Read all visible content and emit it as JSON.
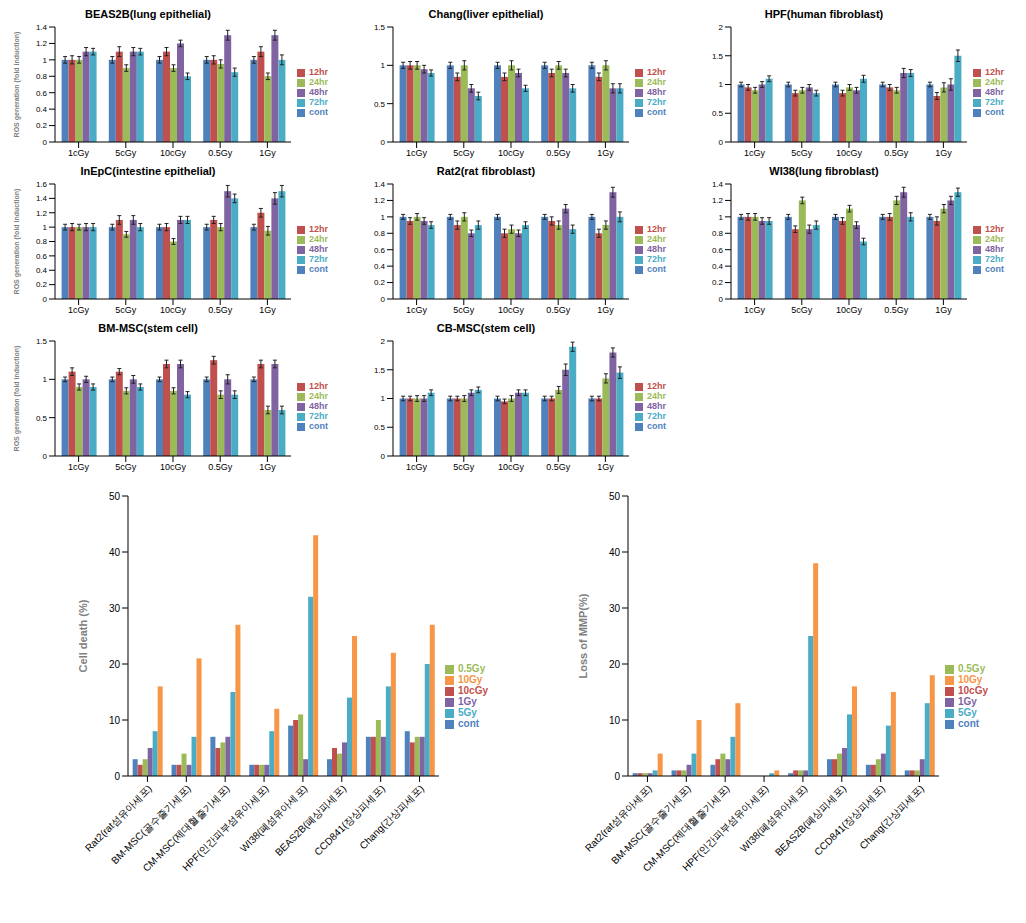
{
  "chart_data": [
    {
      "type": "bar",
      "title": "BEAS2B(lung epithelial)",
      "y_label": "ROS generation (fold induction)",
      "categories": [
        "1cGy",
        "5cGy",
        "10cGy",
        "0.5Gy",
        "1Gy"
      ],
      "ylim": [
        0,
        1.4
      ],
      "yticks": [
        0,
        0.2,
        0.4,
        0.6,
        0.8,
        1,
        1.2,
        1.4
      ],
      "legend": "right",
      "grid": false,
      "series": [
        {
          "name": "cont",
          "color": "#4F81BD",
          "values": [
            1,
            1,
            1,
            1,
            1
          ],
          "errors": [
            0.04,
            0.04,
            0.04,
            0.04,
            0.04
          ]
        },
        {
          "name": "12hr",
          "color": "#C0504D",
          "values": [
            1,
            1.1,
            1.1,
            1.0,
            1.1
          ],
          "errors": [
            0.05,
            0.06,
            0.05,
            0.05,
            0.06
          ]
        },
        {
          "name": "24hr",
          "color": "#9BBB59",
          "values": [
            1,
            0.9,
            0.9,
            0.95,
            0.8
          ],
          "errors": [
            0.04,
            0.04,
            0.04,
            0.05,
            0.04
          ]
        },
        {
          "name": "48hr",
          "color": "#8064A2",
          "values": [
            1.1,
            1.1,
            1.2,
            1.3,
            1.3
          ],
          "errors": [
            0.05,
            0.05,
            0.04,
            0.06,
            0.06
          ]
        },
        {
          "name": "72hr",
          "color": "#4BACC6",
          "values": [
            1.1,
            1.1,
            0.8,
            0.85,
            1.0
          ],
          "errors": [
            0.04,
            0.04,
            0.04,
            0.05,
            0.06
          ]
        }
      ]
    },
    {
      "type": "bar",
      "title": "Chang(liver epithelial)",
      "categories": [
        "1cGy",
        "5cGy",
        "10cGy",
        "0.5Gy",
        "1Gy"
      ],
      "ylim": [
        0,
        1.5
      ],
      "yticks": [
        0,
        0.5,
        1,
        1.5
      ],
      "legend": "right",
      "grid": false,
      "series": [
        {
          "name": "cont",
          "color": "#4F81BD",
          "values": [
            1,
            1,
            1,
            1,
            1
          ],
          "errors": [
            0.04,
            0.04,
            0.04,
            0.04,
            0.04
          ]
        },
        {
          "name": "12hr",
          "color": "#C0504D",
          "values": [
            1,
            0.85,
            0.85,
            0.9,
            0.85
          ],
          "errors": [
            0.05,
            0.05,
            0.05,
            0.05,
            0.05
          ]
        },
        {
          "name": "24hr",
          "color": "#9BBB59",
          "values": [
            1,
            1.0,
            1.0,
            1.0,
            1.0
          ],
          "errors": [
            0.05,
            0.06,
            0.06,
            0.05,
            0.06
          ]
        },
        {
          "name": "48hr",
          "color": "#8064A2",
          "values": [
            0.95,
            0.7,
            0.9,
            0.9,
            0.7
          ],
          "errors": [
            0.05,
            0.05,
            0.05,
            0.05,
            0.06
          ]
        },
        {
          "name": "72hr",
          "color": "#4BACC6",
          "values": [
            0.9,
            0.6,
            0.7,
            0.7,
            0.7
          ],
          "errors": [
            0.04,
            0.05,
            0.04,
            0.05,
            0.06
          ]
        }
      ]
    },
    {
      "type": "bar",
      "title": "HPF(human fibroblast)",
      "categories": [
        "1cGy",
        "5cGy",
        "10cGy",
        "0.5Gy",
        "1Gy"
      ],
      "ylim": [
        0,
        2
      ],
      "yticks": [
        0,
        0.5,
        1,
        1.5,
        2
      ],
      "legend": "right",
      "grid": false,
      "series": [
        {
          "name": "cont",
          "color": "#4F81BD",
          "values": [
            1,
            1,
            1,
            1,
            1
          ],
          "errors": [
            0.04,
            0.04,
            0.04,
            0.04,
            0.04
          ]
        },
        {
          "name": "12hr",
          "color": "#C0504D",
          "values": [
            0.95,
            0.85,
            0.85,
            0.95,
            0.8
          ],
          "errors": [
            0.05,
            0.05,
            0.05,
            0.05,
            0.06
          ]
        },
        {
          "name": "24hr",
          "color": "#9BBB59",
          "values": [
            0.9,
            0.9,
            0.95,
            0.9,
            0.95
          ],
          "errors": [
            0.05,
            0.05,
            0.05,
            0.05,
            0.08
          ]
        },
        {
          "name": "48hr",
          "color": "#8064A2",
          "values": [
            1.0,
            0.95,
            0.9,
            1.2,
            1.0
          ],
          "errors": [
            0.05,
            0.05,
            0.05,
            0.08,
            0.1
          ]
        },
        {
          "name": "72hr",
          "color": "#4BACC6",
          "values": [
            1.1,
            0.85,
            1.1,
            1.2,
            1.5
          ],
          "errors": [
            0.05,
            0.05,
            0.06,
            0.06,
            0.1
          ]
        }
      ]
    },
    {
      "type": "bar",
      "title": "InEpC(intestine epithelial)",
      "y_label": "ROS generation (fold induction)",
      "categories": [
        "1cGy",
        "5cGy",
        "10cGy",
        "0.5Gy",
        "1Gy"
      ],
      "ylim": [
        0,
        1.6
      ],
      "yticks": [
        0,
        0.2,
        0.4,
        0.6,
        0.8,
        1,
        1.2,
        1.4,
        1.6
      ],
      "legend": "right",
      "grid": false,
      "series": [
        {
          "name": "cont",
          "color": "#4F81BD",
          "values": [
            1,
            1,
            1,
            1,
            1
          ],
          "errors": [
            0.04,
            0.04,
            0.04,
            0.04,
            0.04
          ]
        },
        {
          "name": "12hr",
          "color": "#C0504D",
          "values": [
            1,
            1.1,
            1.0,
            1.1,
            1.2
          ],
          "errors": [
            0.05,
            0.06,
            0.05,
            0.05,
            0.06
          ]
        },
        {
          "name": "24hr",
          "color": "#9BBB59",
          "values": [
            1,
            0.9,
            0.8,
            1.0,
            0.95
          ],
          "errors": [
            0.04,
            0.04,
            0.04,
            0.05,
            0.06
          ]
        },
        {
          "name": "48hr",
          "color": "#8064A2",
          "values": [
            1,
            1.1,
            1.1,
            1.5,
            1.4
          ],
          "errors": [
            0.05,
            0.06,
            0.05,
            0.08,
            0.08
          ]
        },
        {
          "name": "72hr",
          "color": "#4BACC6",
          "values": [
            1,
            1.0,
            1.1,
            1.4,
            1.5
          ],
          "errors": [
            0.05,
            0.05,
            0.05,
            0.06,
            0.08
          ]
        }
      ]
    },
    {
      "type": "bar",
      "title": "Rat2(rat fibroblast)",
      "categories": [
        "1cGy",
        "5cGy",
        "10cGy",
        "0.5Gy",
        "1Gy"
      ],
      "ylim": [
        0,
        1.4
      ],
      "yticks": [
        0,
        0.2,
        0.4,
        0.6,
        0.8,
        1,
        1.2,
        1.4
      ],
      "legend": "right",
      "grid": false,
      "series": [
        {
          "name": "cont",
          "color": "#4F81BD",
          "values": [
            1,
            1,
            1,
            1,
            1
          ],
          "errors": [
            0.03,
            0.03,
            0.03,
            0.03,
            0.03
          ]
        },
        {
          "name": "12hr",
          "color": "#C0504D",
          "values": [
            0.95,
            0.9,
            0.8,
            0.95,
            0.8
          ],
          "errors": [
            0.04,
            0.05,
            0.05,
            0.05,
            0.05
          ]
        },
        {
          "name": "24hr",
          "color": "#9BBB59",
          "values": [
            1.0,
            1.0,
            0.85,
            0.9,
            0.9
          ],
          "errors": [
            0.04,
            0.05,
            0.05,
            0.05,
            0.05
          ]
        },
        {
          "name": "48hr",
          "color": "#8064A2",
          "values": [
            0.95,
            0.8,
            0.8,
            1.1,
            1.3
          ],
          "errors": [
            0.04,
            0.04,
            0.04,
            0.05,
            0.06
          ]
        },
        {
          "name": "72hr",
          "color": "#4BACC6",
          "values": [
            0.9,
            0.9,
            0.9,
            0.85,
            1.0
          ],
          "errors": [
            0.04,
            0.05,
            0.04,
            0.05,
            0.06
          ]
        }
      ]
    },
    {
      "type": "bar",
      "title": "WI38(lung fibroblast)",
      "categories": [
        "1cGy",
        "5cGy",
        "10cGy",
        "0.5Gy",
        "1Gy"
      ],
      "ylim": [
        0,
        1.4
      ],
      "yticks": [
        0,
        0.2,
        0.4,
        0.6,
        0.8,
        1,
        1.2,
        1.4
      ],
      "legend": "right",
      "grid": false,
      "series": [
        {
          "name": "cont",
          "color": "#4F81BD",
          "values": [
            1,
            1,
            1,
            1,
            1
          ],
          "errors": [
            0.03,
            0.03,
            0.03,
            0.03,
            0.03
          ]
        },
        {
          "name": "12hr",
          "color": "#C0504D",
          "values": [
            1.0,
            0.85,
            0.95,
            1.0,
            0.95
          ],
          "errors": [
            0.04,
            0.04,
            0.04,
            0.04,
            0.05
          ]
        },
        {
          "name": "24hr",
          "color": "#9BBB59",
          "values": [
            1.0,
            1.2,
            1.1,
            1.2,
            1.1
          ],
          "errors": [
            0.04,
            0.04,
            0.04,
            0.05,
            0.05
          ]
        },
        {
          "name": "48hr",
          "color": "#8064A2",
          "values": [
            0.95,
            0.85,
            0.9,
            1.3,
            1.2
          ],
          "errors": [
            0.04,
            0.05,
            0.04,
            0.06,
            0.05
          ]
        },
        {
          "name": "72hr",
          "color": "#4BACC6",
          "values": [
            0.95,
            0.9,
            0.7,
            1.0,
            1.3
          ],
          "errors": [
            0.04,
            0.05,
            0.04,
            0.05,
            0.05
          ]
        }
      ]
    },
    {
      "type": "bar",
      "title": "BM-MSC(stem cell)",
      "y_label": "ROS generation (fold induction)",
      "categories": [
        "1cGy",
        "5cGy",
        "10cGy",
        "0.5Gy",
        "1Gy"
      ],
      "ylim": [
        0,
        1.5
      ],
      "yticks": [
        0,
        0.5,
        1,
        1.5
      ],
      "legend": "right",
      "grid": false,
      "series": [
        {
          "name": "cont",
          "color": "#4F81BD",
          "values": [
            1,
            1,
            1,
            1,
            1
          ],
          "errors": [
            0.03,
            0.03,
            0.03,
            0.03,
            0.03
          ]
        },
        {
          "name": "12hr",
          "color": "#C0504D",
          "values": [
            1.1,
            1.1,
            1.2,
            1.25,
            1.2
          ],
          "errors": [
            0.05,
            0.04,
            0.05,
            0.05,
            0.05
          ]
        },
        {
          "name": "24hr",
          "color": "#9BBB59",
          "values": [
            0.9,
            0.85,
            0.85,
            0.8,
            0.6
          ],
          "errors": [
            0.04,
            0.04,
            0.04,
            0.05,
            0.05
          ]
        },
        {
          "name": "48hr",
          "color": "#8064A2",
          "values": [
            1.0,
            1.0,
            1.2,
            1.0,
            1.2
          ],
          "errors": [
            0.04,
            0.05,
            0.05,
            0.06,
            0.05
          ]
        },
        {
          "name": "72hr",
          "color": "#4BACC6",
          "values": [
            0.9,
            0.9,
            0.8,
            0.8,
            0.6
          ],
          "errors": [
            0.04,
            0.04,
            0.04,
            0.05,
            0.05
          ]
        }
      ]
    },
    {
      "type": "bar",
      "title": "CB-MSC(stem cell)",
      "categories": [
        "1cGy",
        "5cGy",
        "10cGy",
        "0.5Gy",
        "1Gy"
      ],
      "ylim": [
        0,
        2
      ],
      "yticks": [
        0,
        0.5,
        1,
        1.5,
        2
      ],
      "legend": "right",
      "grid": false,
      "series": [
        {
          "name": "cont",
          "color": "#4F81BD",
          "values": [
            1,
            1,
            1,
            1,
            1
          ],
          "errors": [
            0.04,
            0.04,
            0.04,
            0.04,
            0.04
          ]
        },
        {
          "name": "12hr",
          "color": "#C0504D",
          "values": [
            1.0,
            1.0,
            0.95,
            1.0,
            1.0
          ],
          "errors": [
            0.04,
            0.04,
            0.04,
            0.04,
            0.04
          ]
        },
        {
          "name": "24hr",
          "color": "#9BBB59",
          "values": [
            1.0,
            1.0,
            1.0,
            1.15,
            1.35
          ],
          "errors": [
            0.05,
            0.05,
            0.05,
            0.06,
            0.08
          ]
        },
        {
          "name": "48hr",
          "color": "#8064A2",
          "values": [
            1.0,
            1.1,
            1.1,
            1.5,
            1.8
          ],
          "errors": [
            0.05,
            0.05,
            0.05,
            0.1,
            0.08
          ]
        },
        {
          "name": "72hr",
          "color": "#4BACC6",
          "values": [
            1.1,
            1.15,
            1.1,
            1.9,
            1.45
          ],
          "errors": [
            0.05,
            0.05,
            0.05,
            0.08,
            0.1
          ]
        }
      ]
    },
    {
      "type": "bar",
      "y_label": "Cell death (%)",
      "categories": [
        "Rat2(rat섬유아세포)",
        "BM-MSC(골수줄기세포)",
        "CM-MSC(제대혈줄기세포)",
        "HPF(인간피부섬유아세포)",
        "WI38(폐섬유아세포)",
        "BEAS2B(폐상피세포)",
        "CCD841(장상피세포)",
        "Chang(간상피세포)"
      ],
      "ylim": [
        0,
        50
      ],
      "yticks": [
        0,
        10,
        20,
        30,
        40,
        50
      ],
      "legend": "right",
      "grid": false,
      "series": [
        {
          "name": "cont",
          "color": "#4F81BD",
          "values": [
            3,
            2,
            7,
            2,
            9,
            3,
            7,
            8
          ]
        },
        {
          "name": "10cGy",
          "color": "#C0504D",
          "values": [
            2,
            2,
            5,
            2,
            10,
            5,
            7,
            6
          ]
        },
        {
          "name": "0.5Gy",
          "color": "#9BBB59",
          "values": [
            3,
            4,
            6,
            2,
            11,
            4,
            10,
            7
          ]
        },
        {
          "name": "1Gy",
          "color": "#8064A2",
          "values": [
            5,
            2,
            7,
            2,
            3,
            6,
            7,
            7
          ]
        },
        {
          "name": "5Gy",
          "color": "#4BACC6",
          "values": [
            8,
            7,
            15,
            8,
            32,
            14,
            16,
            20
          ]
        },
        {
          "name": "10Gy",
          "color": "#F79646",
          "values": [
            16,
            21,
            27,
            12,
            43,
            25,
            22,
            27
          ]
        }
      ]
    },
    {
      "type": "bar",
      "y_label": "Loss of MMP(%)",
      "categories": [
        "Rat2(rat섬유아세포)",
        "BM-MSC(골수줄기세포)",
        "CM-MSC(제대혈줄기세포)",
        "HPF(인간피부섬유아세포)",
        "WI38(폐섬유아세포)",
        "BEAS2B(폐상피세포)",
        "CCD841(장상피세포)",
        "Chang(간상피세포)"
      ],
      "ylim": [
        0,
        50
      ],
      "yticks": [
        0,
        10,
        20,
        30,
        40,
        50
      ],
      "legend": "right",
      "grid": false,
      "series": [
        {
          "name": "cont",
          "color": "#4F81BD",
          "values": [
            0.5,
            1,
            2,
            0,
            0.5,
            3,
            2,
            1
          ]
        },
        {
          "name": "10cGy",
          "color": "#C0504D",
          "values": [
            0.5,
            1,
            3,
            0,
            1,
            3,
            2,
            1
          ]
        },
        {
          "name": "0.5Gy",
          "color": "#9BBB59",
          "values": [
            0.5,
            1,
            4,
            0,
            1,
            4,
            3,
            1
          ]
        },
        {
          "name": "1Gy",
          "color": "#8064A2",
          "values": [
            0.5,
            2,
            3,
            0,
            1,
            5,
            4,
            3
          ]
        },
        {
          "name": "5Gy",
          "color": "#4BACC6",
          "values": [
            1,
            4,
            7,
            0.5,
            25,
            11,
            9,
            13
          ]
        },
        {
          "name": "10Gy",
          "color": "#F79646",
          "values": [
            4,
            10,
            13,
            1,
            38,
            16,
            15,
            18
          ]
        }
      ]
    }
  ]
}
